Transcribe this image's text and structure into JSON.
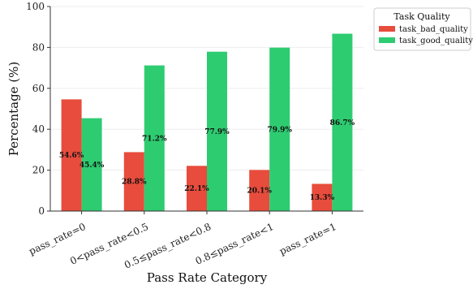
{
  "chart_data": {
    "type": "bar",
    "categories": [
      "pass_rate=0",
      "0<pass_rate<0.5",
      "0.5≤pass_rate<0.8",
      "0.8≤pass_rate<1",
      "pass_rate=1"
    ],
    "series": [
      {
        "name": "task_bad_quality",
        "values": [
          54.6,
          28.8,
          22.1,
          20.1,
          13.3
        ],
        "labels": [
          "54.6%",
          "28.8%",
          "22.1%",
          "20.1%",
          "13.3%"
        ],
        "color": "#e74c3c"
      },
      {
        "name": "task_good_quality",
        "values": [
          45.4,
          71.2,
          77.9,
          79.9,
          86.7
        ],
        "labels": [
          "45.4%",
          "71.2%",
          "77.9%",
          "79.9%",
          "86.7%"
        ],
        "color": "#2ecc71"
      }
    ],
    "xlabel": "Pass Rate Category",
    "ylabel": "Percentage (%)",
    "ylim": [
      0,
      100
    ],
    "yticks": [
      "0",
      "20",
      "40",
      "60",
      "80",
      "100"
    ],
    "legend": {
      "title": "Task Quality",
      "placement": "outside-top-right"
    },
    "grid": "horizontal-light"
  }
}
